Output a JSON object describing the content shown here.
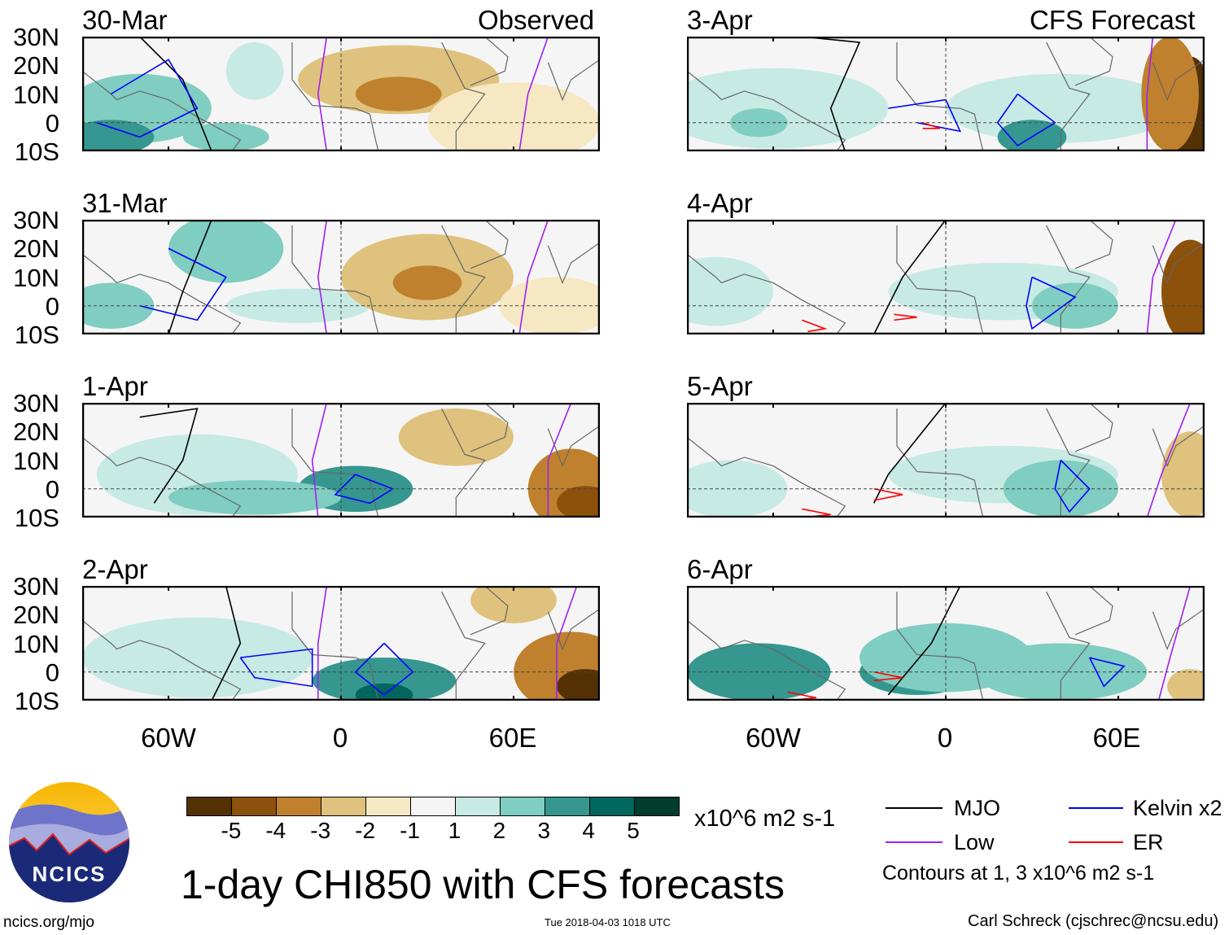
{
  "header": {
    "left_label": "Observed",
    "right_label": "CFS Forecast"
  },
  "panels_left": [
    {
      "date": "30-Mar"
    },
    {
      "date": "31-Mar"
    },
    {
      "date": "1-Apr"
    },
    {
      "date": "2-Apr"
    }
  ],
  "panels_right": [
    {
      "date": "3-Apr"
    },
    {
      "date": "4-Apr"
    },
    {
      "date": "5-Apr"
    },
    {
      "date": "6-Apr"
    }
  ],
  "axes": {
    "lat_ticks": [
      "30N",
      "20N",
      "10N",
      "0",
      "10S"
    ],
    "lon_ticks": [
      "60W",
      "0",
      "60E"
    ],
    "lon_range": [
      -90,
      90
    ],
    "lat_range": [
      -10,
      30
    ]
  },
  "colorbar": {
    "levels": [
      "-5",
      "-4",
      "-3",
      "-2",
      "-1",
      "1",
      "2",
      "3",
      "4",
      "5"
    ],
    "colors": [
      "#543005",
      "#8c510a",
      "#bf812d",
      "#dfc27d",
      "#f6e8c3",
      "#f5f5f5",
      "#c7eae5",
      "#80cdc1",
      "#35978f",
      "#01665e",
      "#003c30"
    ],
    "units": "x10^6 m2 s-1"
  },
  "title": "1-day CHI850 with CFS forecasts",
  "legend": {
    "items": [
      {
        "label": "MJO",
        "color": "#000000"
      },
      {
        "label": "Kelvin x2",
        "color": "#0000ff"
      },
      {
        "label": "Low",
        "color": "#a020f0"
      },
      {
        "label": "ER",
        "color": "#ff0000"
      }
    ],
    "note": "Contours at 1, 3 x10^6 m2 s-1"
  },
  "logo": {
    "text": "NCICS"
  },
  "footer": {
    "url": "ncics.org/mjo",
    "timestamp": "Tue 2018-04-03 1018 UTC",
    "credit": "Carl Schreck (cjschrec@ncsu.edu)"
  }
}
